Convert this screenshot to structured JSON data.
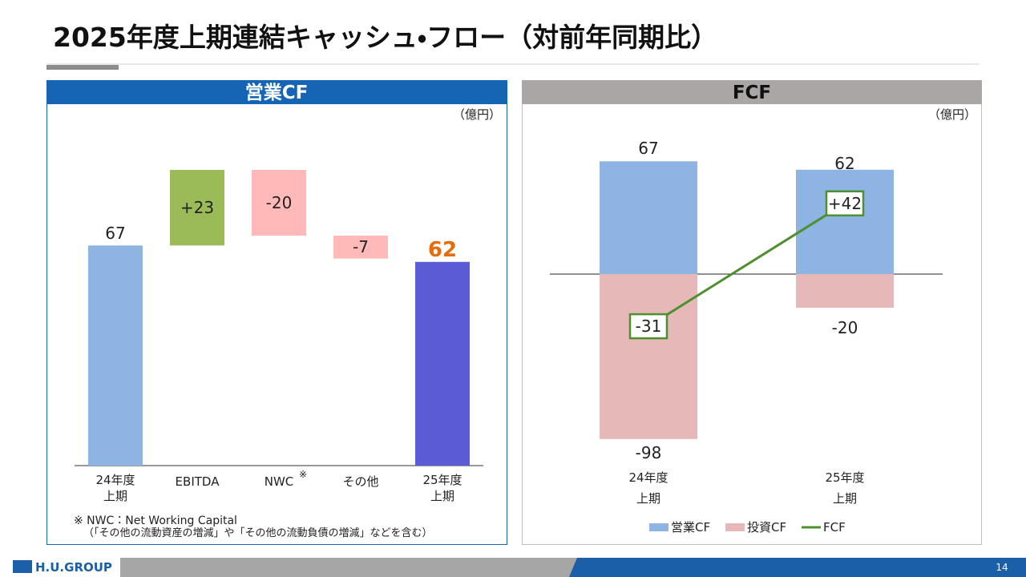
{
  "title": "2025年度上期連結キャッシュ・フロー（対前年同期比）",
  "footer": {
    "logo": "H.U.GROUP",
    "page": "14"
  },
  "chart_data": [
    {
      "type": "waterfall",
      "title": "営業CF",
      "unit": "（億円）",
      "categories": [
        "24年度\n上期",
        "EBITDA",
        "NWC",
        "その他",
        "25年度\n上期"
      ],
      "values": [
        67,
        23,
        -20,
        -7,
        62
      ],
      "value_labels": [
        "67",
        "+23",
        "-20",
        "-7",
        "62"
      ],
      "colors": [
        "#8eb4e3",
        "#9bbb59",
        "#ffb9b9",
        "#ffb9b9",
        "#5b5bd6"
      ],
      "highlight_color": "#e46c0a",
      "category_note": "※",
      "notes": [
        "※  NWC：Net Working Capital",
        "（「その他の流動資産の増減」や「その他の流動負債の増減」などを含む）"
      ]
    },
    {
      "type": "bar-line",
      "title": "FCF",
      "unit": "（億円）",
      "categories": [
        "24年度\n上期",
        "25年度\n上期"
      ],
      "series": [
        {
          "name": "営業CF",
          "color": "#8eb4e3",
          "values": [
            67,
            62
          ]
        },
        {
          "name": "投資CF",
          "color": "#e6b9b8",
          "values": [
            -98,
            -20
          ]
        },
        {
          "name": "FCF",
          "color": "#4e8f2e",
          "values": [
            -31,
            42
          ],
          "value_labels": [
            "-31",
            "+42"
          ]
        }
      ],
      "legend": "bottom"
    }
  ]
}
